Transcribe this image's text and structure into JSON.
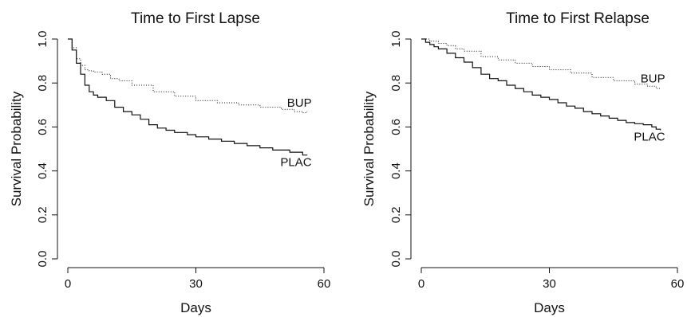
{
  "chart_data": [
    {
      "type": "line",
      "title": "Time to First Lapse",
      "xlabel": "Days",
      "ylabel": "Survival Probability",
      "xlim": [
        0,
        60
      ],
      "ylim": [
        0.0,
        1.0
      ],
      "xticks": [
        "0",
        "30",
        "60"
      ],
      "yticks": [
        "0.0",
        "0.2",
        "0.4",
        "0.6",
        "0.8",
        "1.0"
      ],
      "series": [
        {
          "name": "BUP",
          "line_style": "dotted",
          "x": [
            0,
            1,
            2,
            3,
            4,
            5,
            6,
            8,
            10,
            12,
            15,
            20,
            25,
            30,
            35,
            40,
            45,
            50,
            53,
            55,
            56
          ],
          "y": [
            1.0,
            0.96,
            0.91,
            0.88,
            0.86,
            0.855,
            0.85,
            0.84,
            0.82,
            0.81,
            0.79,
            0.76,
            0.74,
            0.72,
            0.71,
            0.7,
            0.69,
            0.68,
            0.67,
            0.665,
            0.67
          ]
        },
        {
          "name": "PLAC",
          "line_style": "solid",
          "x": [
            0,
            1,
            2,
            3,
            4,
            5,
            6,
            7,
            9,
            11,
            13,
            15,
            17,
            19,
            21,
            23,
            25,
            28,
            30,
            33,
            36,
            39,
            42,
            45,
            48,
            52,
            55,
            56
          ],
          "y": [
            1.0,
            0.95,
            0.89,
            0.84,
            0.79,
            0.76,
            0.745,
            0.735,
            0.72,
            0.69,
            0.67,
            0.655,
            0.635,
            0.61,
            0.595,
            0.585,
            0.575,
            0.565,
            0.555,
            0.545,
            0.535,
            0.525,
            0.515,
            0.505,
            0.495,
            0.485,
            0.472,
            0.47
          ]
        }
      ]
    },
    {
      "type": "line",
      "title": "Time to First Relapse",
      "xlabel": "Days",
      "ylabel": "Survival Probability",
      "xlim": [
        0,
        60
      ],
      "ylim": [
        0.0,
        1.0
      ],
      "xticks": [
        "0",
        "30",
        "60"
      ],
      "yticks": [
        "0.0",
        "0.2",
        "0.4",
        "0.6",
        "0.8",
        "1.0"
      ],
      "series": [
        {
          "name": "BUP",
          "line_style": "dotted",
          "x": [
            0,
            2,
            4,
            6,
            8,
            10,
            14,
            18,
            22,
            26,
            30,
            35,
            40,
            45,
            50,
            53,
            55,
            56
          ],
          "y": [
            1.0,
            0.99,
            0.98,
            0.97,
            0.955,
            0.945,
            0.92,
            0.905,
            0.89,
            0.875,
            0.86,
            0.845,
            0.825,
            0.81,
            0.795,
            0.785,
            0.775,
            0.78
          ]
        },
        {
          "name": "PLAC",
          "line_style": "solid",
          "x": [
            0,
            1,
            2,
            3,
            4,
            6,
            8,
            10,
            12,
            14,
            16,
            18,
            20,
            22,
            24,
            26,
            28,
            30,
            32,
            34,
            36,
            38,
            40,
            42,
            44,
            46,
            48,
            50,
            52,
            54,
            55,
            56
          ],
          "y": [
            1.0,
            0.985,
            0.975,
            0.965,
            0.955,
            0.935,
            0.915,
            0.895,
            0.87,
            0.84,
            0.82,
            0.81,
            0.79,
            0.775,
            0.76,
            0.745,
            0.735,
            0.725,
            0.71,
            0.695,
            0.685,
            0.67,
            0.66,
            0.65,
            0.64,
            0.63,
            0.62,
            0.615,
            0.61,
            0.6,
            0.59,
            0.585
          ]
        }
      ]
    }
  ]
}
